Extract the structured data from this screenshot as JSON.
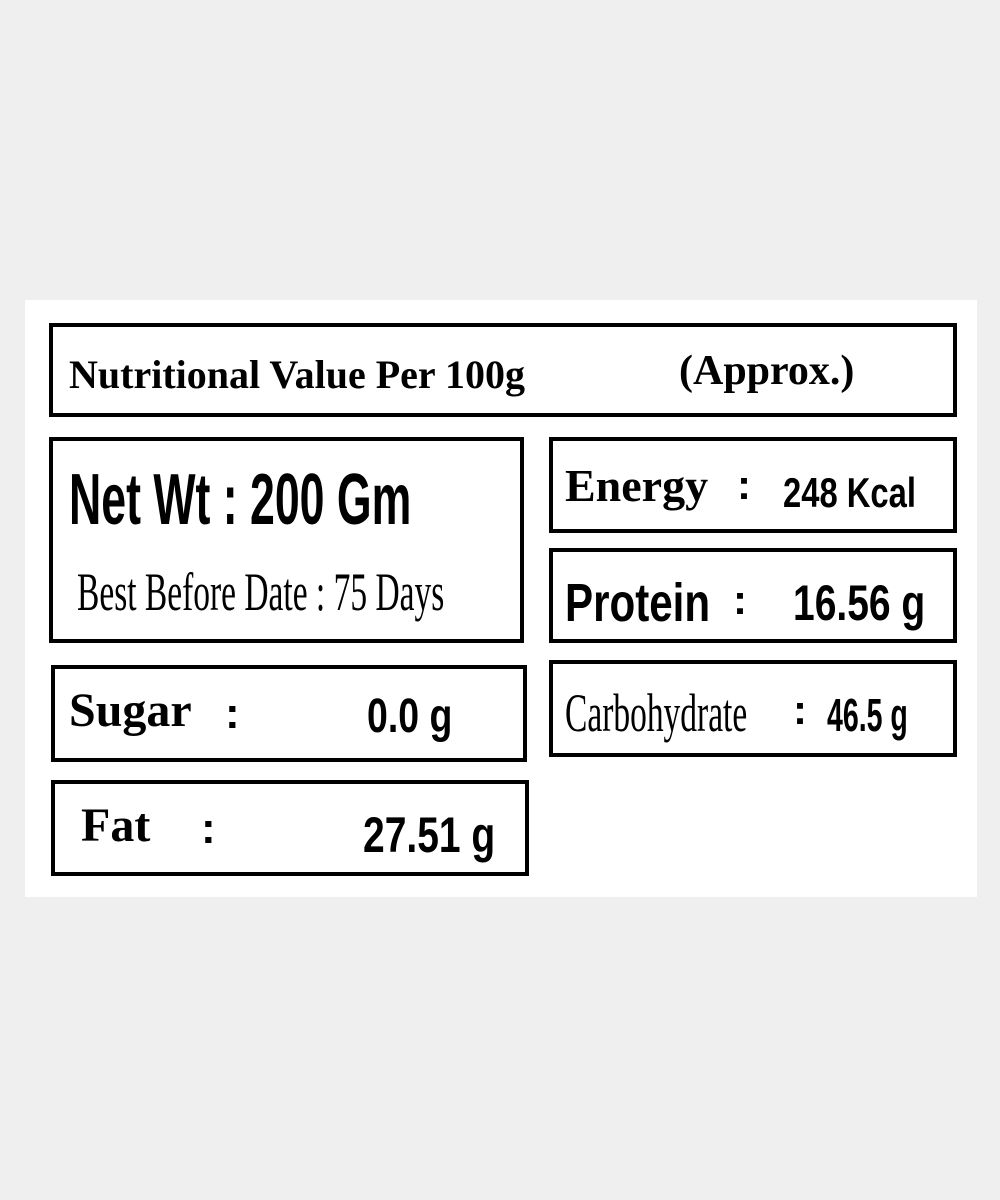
{
  "header": {
    "title": "Nutritional Value Per 100g",
    "note": "(Approx.)"
  },
  "separator": ":",
  "net_weight": {
    "label": "Net Wt",
    "value": "200 Gm"
  },
  "best_before": {
    "label": "Best Before Date",
    "value": "75 Days"
  },
  "nutrients": [
    {
      "label": "Energy",
      "value": "248 Kcal"
    },
    {
      "label": "Protein",
      "value": "16.56 g"
    },
    {
      "label": "Carbohydrate",
      "value": "46.5 g"
    },
    {
      "label": "Sugar",
      "value": "0.0 g"
    },
    {
      "label": "Fat",
      "value": "27.51 g"
    }
  ]
}
